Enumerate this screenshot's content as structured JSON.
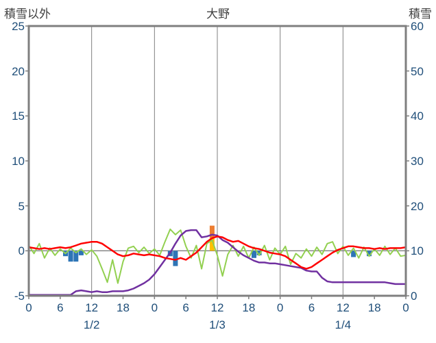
{
  "header": {
    "left_axis_label": "積雪以外",
    "title": "大野",
    "right_axis_label": "積雪"
  },
  "colors": {
    "frame": "#7f7f7f",
    "grid": "#7f7f7f",
    "zero_line": "#7f7f7f",
    "tick_text": "#1f4e79",
    "title_text": "#3f3f3f"
  },
  "chart_data": {
    "type": "line",
    "title": "大野",
    "grid": "vertical-every-12h",
    "legend": "none",
    "left_axis": {
      "label": "積雪以外",
      "min": -5,
      "max": 25,
      "ticks": [
        25,
        20,
        15,
        10,
        5,
        0,
        -5
      ]
    },
    "right_axis": {
      "label": "積雪",
      "min": 0,
      "max": 60,
      "ticks": [
        60,
        50,
        40,
        30,
        20,
        10,
        0
      ]
    },
    "x_axis": {
      "total_hours": 72,
      "tick_every_hours": 6,
      "tick_labels": [
        "0",
        "6",
        "12",
        "18",
        "0",
        "6",
        "12",
        "18",
        "0",
        "6",
        "12",
        "18",
        "0"
      ],
      "gridline_hours": [
        12,
        24,
        36,
        48,
        60
      ],
      "day_labels": [
        {
          "label": "1/2",
          "center_hour": 12
        },
        {
          "label": "1/3",
          "center_hour": 36
        },
        {
          "label": "1/4",
          "center_hour": 60
        }
      ]
    },
    "series": [
      {
        "name": "blue-bars",
        "type": "bar",
        "axis": "left",
        "color": "#2e75b6",
        "bars": [
          {
            "hour": 7,
            "value": -0.6
          },
          {
            "hour": 8,
            "value": -1.2
          },
          {
            "hour": 9,
            "value": -1.2
          },
          {
            "hour": 10,
            "value": -0.5
          },
          {
            "hour": 27,
            "value": -0.6
          },
          {
            "hour": 28,
            "value": -1.7
          },
          {
            "hour": 43,
            "value": -0.8
          },
          {
            "hour": 44,
            "value": -0.5
          },
          {
            "hour": 62,
            "value": -0.7
          },
          {
            "hour": 65,
            "value": -0.6
          }
        ]
      },
      {
        "name": "yellow-bar",
        "type": "bar",
        "axis": "left",
        "color": "#ffc000",
        "bars": [
          {
            "hour": 35,
            "base": 0,
            "value": 1.45
          }
        ]
      },
      {
        "name": "orange-bar",
        "type": "bar",
        "axis": "left",
        "color": "#ed7d31",
        "bars": [
          {
            "hour": 35,
            "base": 1.45,
            "value": 1.35
          }
        ]
      },
      {
        "name": "green-line",
        "type": "line",
        "axis": "left",
        "color": "#92d050",
        "width": 2,
        "values": [
          0.6,
          -0.3,
          0.8,
          -0.8,
          0.3,
          -0.5,
          0.2,
          -0.3,
          0.3,
          -0.2,
          0.2,
          -0.4,
          0.1,
          -0.6,
          -2.0,
          -3.5,
          -1.0,
          -3.6,
          -1.2,
          0.3,
          0.5,
          -0.2,
          0.4,
          -0.3,
          0.2,
          -0.5,
          1.0,
          2.4,
          1.8,
          2.3,
          0.5,
          -0.8,
          0.6,
          -2.0,
          0.8,
          1.2,
          -0.5,
          -2.8,
          -0.4,
          0.6,
          -0.6,
          0.5,
          -0.8,
          0.4,
          -0.5,
          0.6,
          -1.0,
          0.3,
          -0.4,
          0.5,
          -1.5,
          -0.3,
          -0.8,
          0.2,
          -0.6,
          0.4,
          -0.4,
          0.8,
          1.0,
          -0.3,
          0.5,
          -0.5,
          0.3,
          -0.8,
          0.4,
          -0.6,
          0.2,
          -0.5,
          0.5,
          -0.4,
          0.3,
          -0.6,
          -0.5
        ]
      },
      {
        "name": "purple-snow-depth-line",
        "type": "line",
        "axis": "right",
        "color": "#7030a0",
        "width": 2.5,
        "values": [
          0.2,
          0.2,
          0.2,
          0.2,
          0.2,
          0.2,
          0.2,
          0.2,
          0.2,
          1.0,
          1.2,
          1.0,
          0.8,
          1.0,
          0.8,
          0.8,
          1.0,
          1.0,
          1.0,
          1.2,
          1.6,
          2.2,
          2.8,
          3.6,
          4.8,
          6.4,
          8.0,
          9.6,
          11.6,
          13.4,
          14.4,
          14.6,
          14.6,
          13.0,
          13.2,
          13.6,
          13.4,
          12.4,
          11.8,
          10.8,
          9.8,
          9.0,
          8.4,
          7.8,
          7.4,
          7.4,
          7.2,
          7.2,
          7.0,
          6.8,
          6.6,
          6.4,
          6.2,
          5.6,
          5.4,
          5.4,
          4.0,
          3.2,
          3.0,
          3.0,
          3.0,
          3.0,
          3.0,
          3.0,
          3.0,
          3.0,
          3.0,
          3.0,
          3.0,
          2.8,
          2.6,
          2.6,
          2.6
        ]
      },
      {
        "name": "red-line",
        "type": "line",
        "axis": "left",
        "color": "#ff0000",
        "width": 2.5,
        "values": [
          0.4,
          0.3,
          0.2,
          0.3,
          0.2,
          0.3,
          0.4,
          0.3,
          0.4,
          0.6,
          0.8,
          0.9,
          1.0,
          1.0,
          0.8,
          0.4,
          0.0,
          -0.4,
          -0.6,
          -0.5,
          -0.3,
          -0.4,
          -0.5,
          -0.4,
          -0.5,
          -0.6,
          -0.8,
          -0.9,
          -1.0,
          -0.8,
          -1.0,
          -0.6,
          -0.2,
          0.4,
          1.0,
          1.4,
          1.6,
          1.5,
          1.2,
          1.0,
          1.1,
          0.8,
          0.5,
          0.3,
          0.2,
          0.0,
          -0.2,
          -0.3,
          -0.4,
          -0.6,
          -1.0,
          -1.4,
          -1.8,
          -2.0,
          -1.8,
          -1.4,
          -1.0,
          -0.6,
          -0.2,
          0.1,
          0.3,
          0.5,
          0.5,
          0.4,
          0.3,
          0.3,
          0.2,
          0.3,
          0.2,
          0.3,
          0.3,
          0.3,
          0.4
        ]
      }
    ]
  }
}
